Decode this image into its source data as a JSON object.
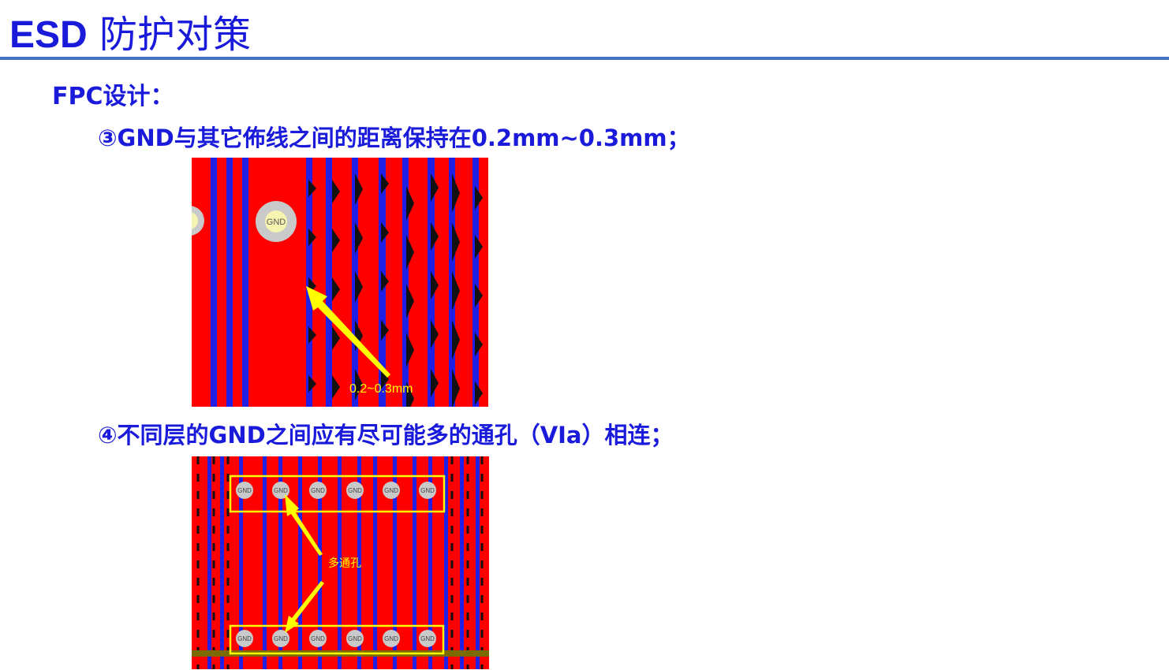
{
  "slide": {
    "title_prefix": "ESD",
    "title_text": "防护对策",
    "section_label": "FPC设计：",
    "point3": "③GND与其它佈线之间的距离保持在0.2mm~0.3mm；",
    "point4": "④不同层的GND之间应有尽可能多的通孔（VIa）相连；"
  },
  "figure1": {
    "pad_label": "GND",
    "annotation": "0.2~0.3mm"
  },
  "figure2": {
    "via_label": "GND",
    "annotation": "多通孔"
  },
  "colors": {
    "title_text": "#1a1adb",
    "rule": "#4472c4",
    "copper": "#ff0000",
    "trace": "#1f1fe6",
    "annotation": "#ffff00",
    "via": "#c9c9c9",
    "ground_bar": "#7a6a00"
  }
}
